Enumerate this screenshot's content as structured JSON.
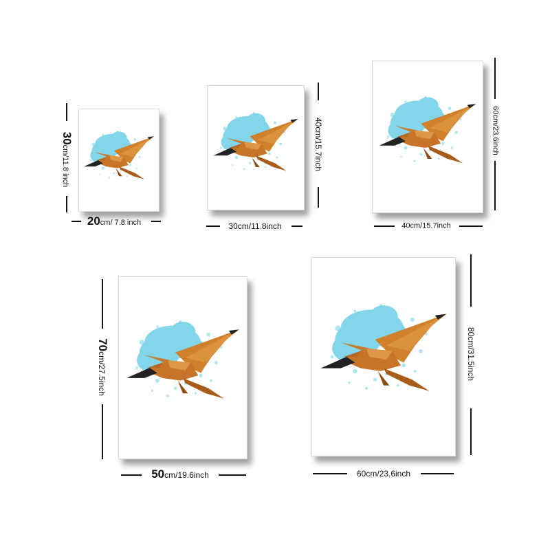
{
  "prints": [
    {
      "size_label": "20cm/ 7.8 inch",
      "width_label_num": "20",
      "width_label_rest": "cm/ 7.8 inch",
      "height_label_num": "30",
      "height_label_rest": "cm/11.8 inch"
    },
    {
      "size_label": "30cm/11.8inch",
      "height_label": "40cm/15.7inch"
    },
    {
      "size_label": "40cm/15.7inch",
      "height_label": "60cm/23.6inch"
    },
    {
      "width_label_num": "50",
      "width_label_rest": "cm/19.6inch",
      "height_label_num": "70",
      "height_label_rest": "cm/27.5inch"
    },
    {
      "size_label": "60cm/23.6inch",
      "height_label": "80cm/31.5inch"
    }
  ],
  "artwork": {
    "subject": "pterosaur",
    "colors": {
      "wash": "#6ed0e6",
      "wing": "#d07f2a",
      "wing_dark": "#8c4a14",
      "beak": "#222222"
    }
  }
}
